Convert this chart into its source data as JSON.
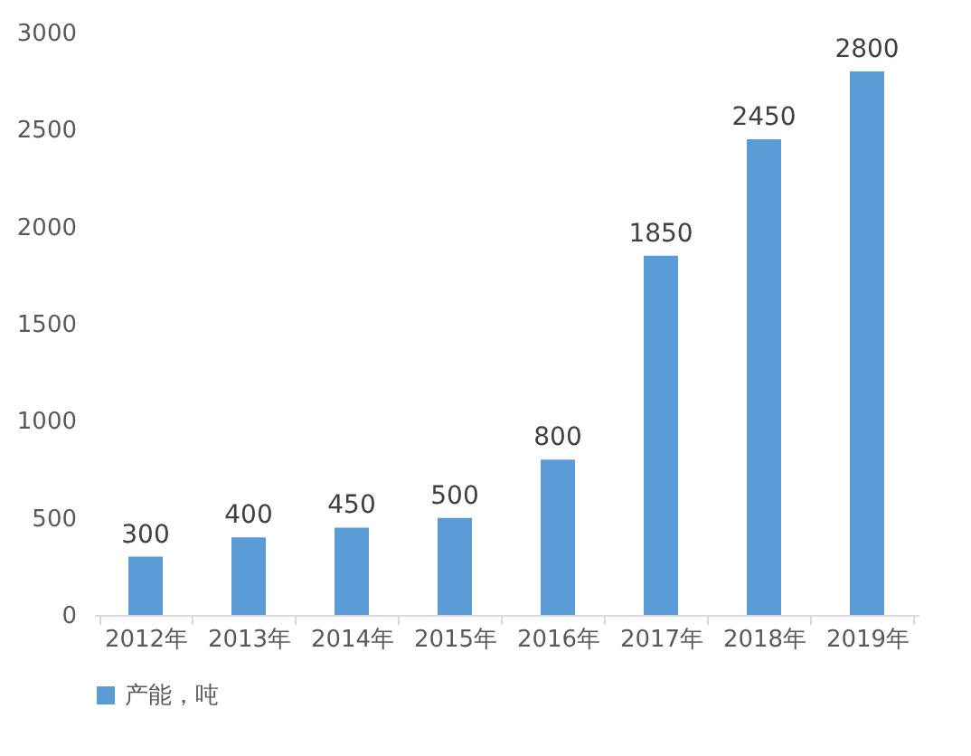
{
  "chart_data": {
    "type": "bar",
    "categories": [
      "2012年",
      "2013年",
      "2014年",
      "2015年",
      "2016年",
      "2017年",
      "2018年",
      "2019年"
    ],
    "series": [
      {
        "name": "产能，吨",
        "color": "#5b9bd5",
        "values": [
          300,
          400,
          450,
          500,
          800,
          1850,
          2450,
          2800
        ]
      }
    ],
    "ylim": [
      0,
      3000
    ],
    "yticks": [
      0,
      500,
      1000,
      1500,
      2000,
      2500,
      3000
    ],
    "grid": false,
    "legend": "bottom",
    "data_labels": true
  }
}
